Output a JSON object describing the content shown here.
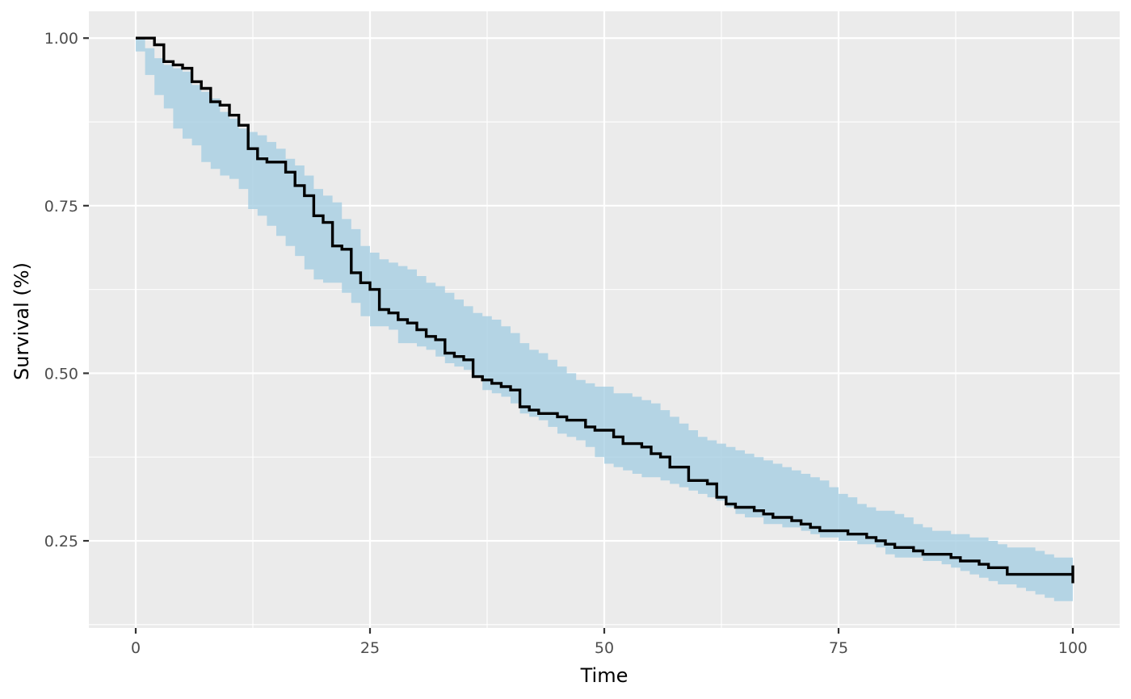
{
  "chart_data": {
    "type": "line",
    "subtype": "kaplan-meier survival step curve with confidence band",
    "title": "",
    "xlabel": "Time",
    "ylabel": "Survival (%)",
    "xlim": [
      -5,
      105
    ],
    "ylim": [
      0.12,
      1.04
    ],
    "x_ticks": [
      0,
      25,
      50,
      75,
      100
    ],
    "x_tick_labels": [
      "0",
      "25",
      "50",
      "75",
      "100"
    ],
    "y_ticks": [
      0.25,
      0.5,
      0.75,
      1.0
    ],
    "y_tick_labels": [
      "0.25",
      "0.50",
      "0.75",
      "1.00"
    ],
    "grid": true,
    "legend": "none",
    "colors": {
      "panel_background": "#ebebeb",
      "grid": "#ffffff",
      "band": "#9ecae1",
      "line": "#000000"
    },
    "series": [
      {
        "role": "survival estimate",
        "x": [
          0,
          2,
          3,
          4,
          5,
          6,
          7,
          8,
          9,
          10,
          11,
          12,
          13,
          14,
          16,
          17,
          18,
          19,
          20,
          21,
          22,
          23,
          24,
          25,
          26,
          27,
          28,
          29,
          30,
          31,
          32,
          33,
          34,
          35,
          36,
          37,
          38,
          39,
          40,
          41,
          42,
          43,
          45,
          46,
          48,
          49,
          51,
          52,
          54,
          55,
          56,
          57,
          59,
          61,
          62,
          63,
          64,
          66,
          67,
          68,
          70,
          71,
          72,
          73,
          75,
          76,
          78,
          79,
          80,
          81,
          83,
          84,
          86,
          87,
          88,
          90,
          91,
          93,
          100
        ],
        "y": [
          1.0,
          0.99,
          0.965,
          0.96,
          0.955,
          0.935,
          0.925,
          0.905,
          0.9,
          0.885,
          0.87,
          0.835,
          0.82,
          0.815,
          0.8,
          0.78,
          0.765,
          0.735,
          0.725,
          0.69,
          0.685,
          0.65,
          0.635,
          0.625,
          0.595,
          0.59,
          0.58,
          0.575,
          0.565,
          0.555,
          0.55,
          0.53,
          0.525,
          0.52,
          0.495,
          0.49,
          0.485,
          0.48,
          0.475,
          0.45,
          0.445,
          0.44,
          0.435,
          0.43,
          0.42,
          0.415,
          0.405,
          0.395,
          0.39,
          0.38,
          0.375,
          0.36,
          0.34,
          0.335,
          0.315,
          0.305,
          0.3,
          0.295,
          0.29,
          0.285,
          0.28,
          0.275,
          0.27,
          0.265,
          0.265,
          0.26,
          0.255,
          0.25,
          0.245,
          0.24,
          0.235,
          0.23,
          0.23,
          0.225,
          0.22,
          0.215,
          0.21,
          0.2,
          0.2
        ]
      },
      {
        "role": "confidence band",
        "x": [
          0,
          1,
          2,
          3,
          4,
          5,
          6,
          7,
          8,
          9,
          10,
          11,
          12,
          13,
          14,
          15,
          16,
          17,
          18,
          19,
          20,
          21,
          22,
          23,
          24,
          25,
          26,
          27,
          28,
          29,
          30,
          31,
          32,
          33,
          34,
          35,
          36,
          37,
          38,
          39,
          40,
          41,
          42,
          43,
          44,
          45,
          46,
          47,
          48,
          49,
          50,
          51,
          52,
          53,
          54,
          55,
          56,
          57,
          58,
          59,
          60,
          61,
          62,
          63,
          64,
          65,
          66,
          67,
          68,
          69,
          70,
          71,
          72,
          73,
          74,
          75,
          76,
          77,
          78,
          79,
          80,
          81,
          82,
          83,
          84,
          85,
          86,
          87,
          88,
          89,
          90,
          91,
          92,
          93,
          94,
          95,
          96,
          97,
          98,
          99,
          100
        ],
        "lower": [
          0.98,
          0.945,
          0.915,
          0.895,
          0.865,
          0.85,
          0.84,
          0.815,
          0.805,
          0.795,
          0.79,
          0.775,
          0.745,
          0.735,
          0.72,
          0.705,
          0.69,
          0.675,
          0.655,
          0.64,
          0.635,
          0.635,
          0.62,
          0.605,
          0.585,
          0.57,
          0.57,
          0.565,
          0.545,
          0.545,
          0.54,
          0.535,
          0.525,
          0.515,
          0.51,
          0.505,
          0.495,
          0.475,
          0.47,
          0.465,
          0.455,
          0.44,
          0.435,
          0.43,
          0.42,
          0.41,
          0.405,
          0.4,
          0.39,
          0.375,
          0.365,
          0.36,
          0.355,
          0.35,
          0.345,
          0.345,
          0.34,
          0.335,
          0.33,
          0.325,
          0.32,
          0.315,
          0.31,
          0.3,
          0.29,
          0.285,
          0.285,
          0.275,
          0.275,
          0.27,
          0.27,
          0.265,
          0.26,
          0.255,
          0.255,
          0.25,
          0.25,
          0.245,
          0.245,
          0.24,
          0.23,
          0.225,
          0.225,
          0.225,
          0.22,
          0.22,
          0.215,
          0.21,
          0.205,
          0.2,
          0.195,
          0.19,
          0.185,
          0.185,
          0.18,
          0.175,
          0.17,
          0.165,
          0.16,
          0.16,
          0.16
        ],
        "upper": [
          1.0,
          0.985,
          0.97,
          0.96,
          0.955,
          0.95,
          0.93,
          0.92,
          0.91,
          0.89,
          0.88,
          0.865,
          0.86,
          0.855,
          0.845,
          0.835,
          0.82,
          0.81,
          0.795,
          0.775,
          0.765,
          0.755,
          0.73,
          0.715,
          0.69,
          0.68,
          0.67,
          0.665,
          0.66,
          0.655,
          0.645,
          0.635,
          0.63,
          0.62,
          0.61,
          0.6,
          0.59,
          0.585,
          0.58,
          0.57,
          0.56,
          0.545,
          0.535,
          0.53,
          0.52,
          0.51,
          0.5,
          0.49,
          0.485,
          0.48,
          0.48,
          0.47,
          0.47,
          0.465,
          0.46,
          0.455,
          0.445,
          0.435,
          0.425,
          0.415,
          0.405,
          0.4,
          0.395,
          0.39,
          0.385,
          0.38,
          0.375,
          0.37,
          0.365,
          0.36,
          0.355,
          0.35,
          0.345,
          0.34,
          0.33,
          0.32,
          0.315,
          0.305,
          0.3,
          0.295,
          0.295,
          0.29,
          0.285,
          0.275,
          0.27,
          0.265,
          0.265,
          0.26,
          0.26,
          0.255,
          0.255,
          0.25,
          0.245,
          0.24,
          0.24,
          0.24,
          0.235,
          0.23,
          0.225,
          0.225,
          0.225
        ]
      }
    ]
  }
}
